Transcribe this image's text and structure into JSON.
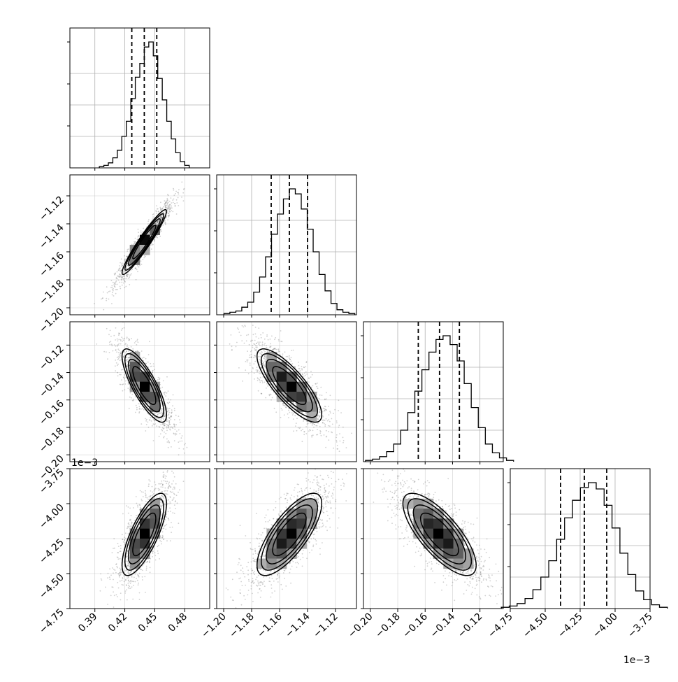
{
  "chart_data": {
    "type": "corner",
    "parameters": 4,
    "axes": [
      {
        "index": 0,
        "ticks": [
          0.39,
          0.42,
          0.45,
          0.48
        ],
        "tick_labels": [
          "0.39",
          "0.42",
          "0.45",
          "0.48"
        ],
        "range": [
          0.365,
          0.505
        ],
        "quantiles": [
          0.427,
          0.4395,
          0.452
        ],
        "offset_label": ""
      },
      {
        "index": 1,
        "ticks": [
          -1.2,
          -1.18,
          -1.16,
          -1.14,
          -1.12
        ],
        "tick_labels": [
          "−1.20",
          "−1.18",
          "−1.16",
          "−1.14",
          "−1.12"
        ],
        "range": [
          -1.205,
          -1.105
        ],
        "quantiles": [
          -1.166,
          -1.153,
          -1.14
        ],
        "offset_label": ""
      },
      {
        "index": 2,
        "ticks": [
          -0.2,
          -0.18,
          -0.16,
          -0.14,
          -0.12
        ],
        "tick_labels": [
          "−0.20",
          "−0.18",
          "−0.16",
          "−0.14",
          "−0.12"
        ],
        "range": [
          -0.205,
          -0.103
        ],
        "quantiles": [
          -0.165,
          -0.1495,
          -0.135
        ],
        "offset_label": ""
      },
      {
        "index": 3,
        "ticks": [
          -4.75,
          -4.5,
          -4.25,
          -4.0,
          -3.75
        ],
        "tick_labels": [
          "−4.75",
          "−4.50",
          "−4.25",
          "−4.00",
          "−3.75"
        ],
        "range": [
          -4.75,
          -3.75
        ],
        "quantiles": [
          -4.39,
          -4.22,
          -4.06
        ],
        "offset_label": "1e−3"
      }
    ],
    "histograms": [
      {
        "param": 0,
        "counts": [
          1,
          2,
          4,
          8,
          14,
          25,
          37,
          55,
          72,
          83,
          96,
          100,
          89,
          71,
          54,
          37,
          23,
          12,
          5,
          2
        ]
      },
      {
        "param": 1,
        "counts": [
          1,
          2,
          3,
          6,
          10,
          18,
          30,
          46,
          64,
          80,
          92,
          100,
          96,
          84,
          68,
          50,
          32,
          19,
          9,
          4,
          2,
          1
        ]
      },
      {
        "param": 2,
        "counts": [
          1,
          2,
          4,
          8,
          14,
          25,
          39,
          56,
          73,
          87,
          97,
          100,
          93,
          80,
          62,
          43,
          27,
          14,
          7,
          3,
          1
        ]
      },
      {
        "param": 3,
        "counts": [
          1,
          2,
          4,
          8,
          15,
          25,
          38,
          55,
          72,
          86,
          96,
          100,
          95,
          82,
          64,
          44,
          27,
          14,
          7,
          3,
          1
        ]
      }
    ],
    "pairs": [
      {
        "x": 0,
        "y": 1,
        "correlation": 0.95
      },
      {
        "x": 0,
        "y": 2,
        "correlation": -0.8
      },
      {
        "x": 1,
        "y": 2,
        "correlation": -0.8
      },
      {
        "x": 0,
        "y": 3,
        "correlation": 0.75
      },
      {
        "x": 1,
        "y": 3,
        "correlation": 0.75
      },
      {
        "x": 2,
        "y": 3,
        "correlation": -0.75
      }
    ],
    "grid": true,
    "colors": {
      "line": "#000000",
      "grid": "#b0b0b0",
      "scatter": "#555555"
    }
  }
}
